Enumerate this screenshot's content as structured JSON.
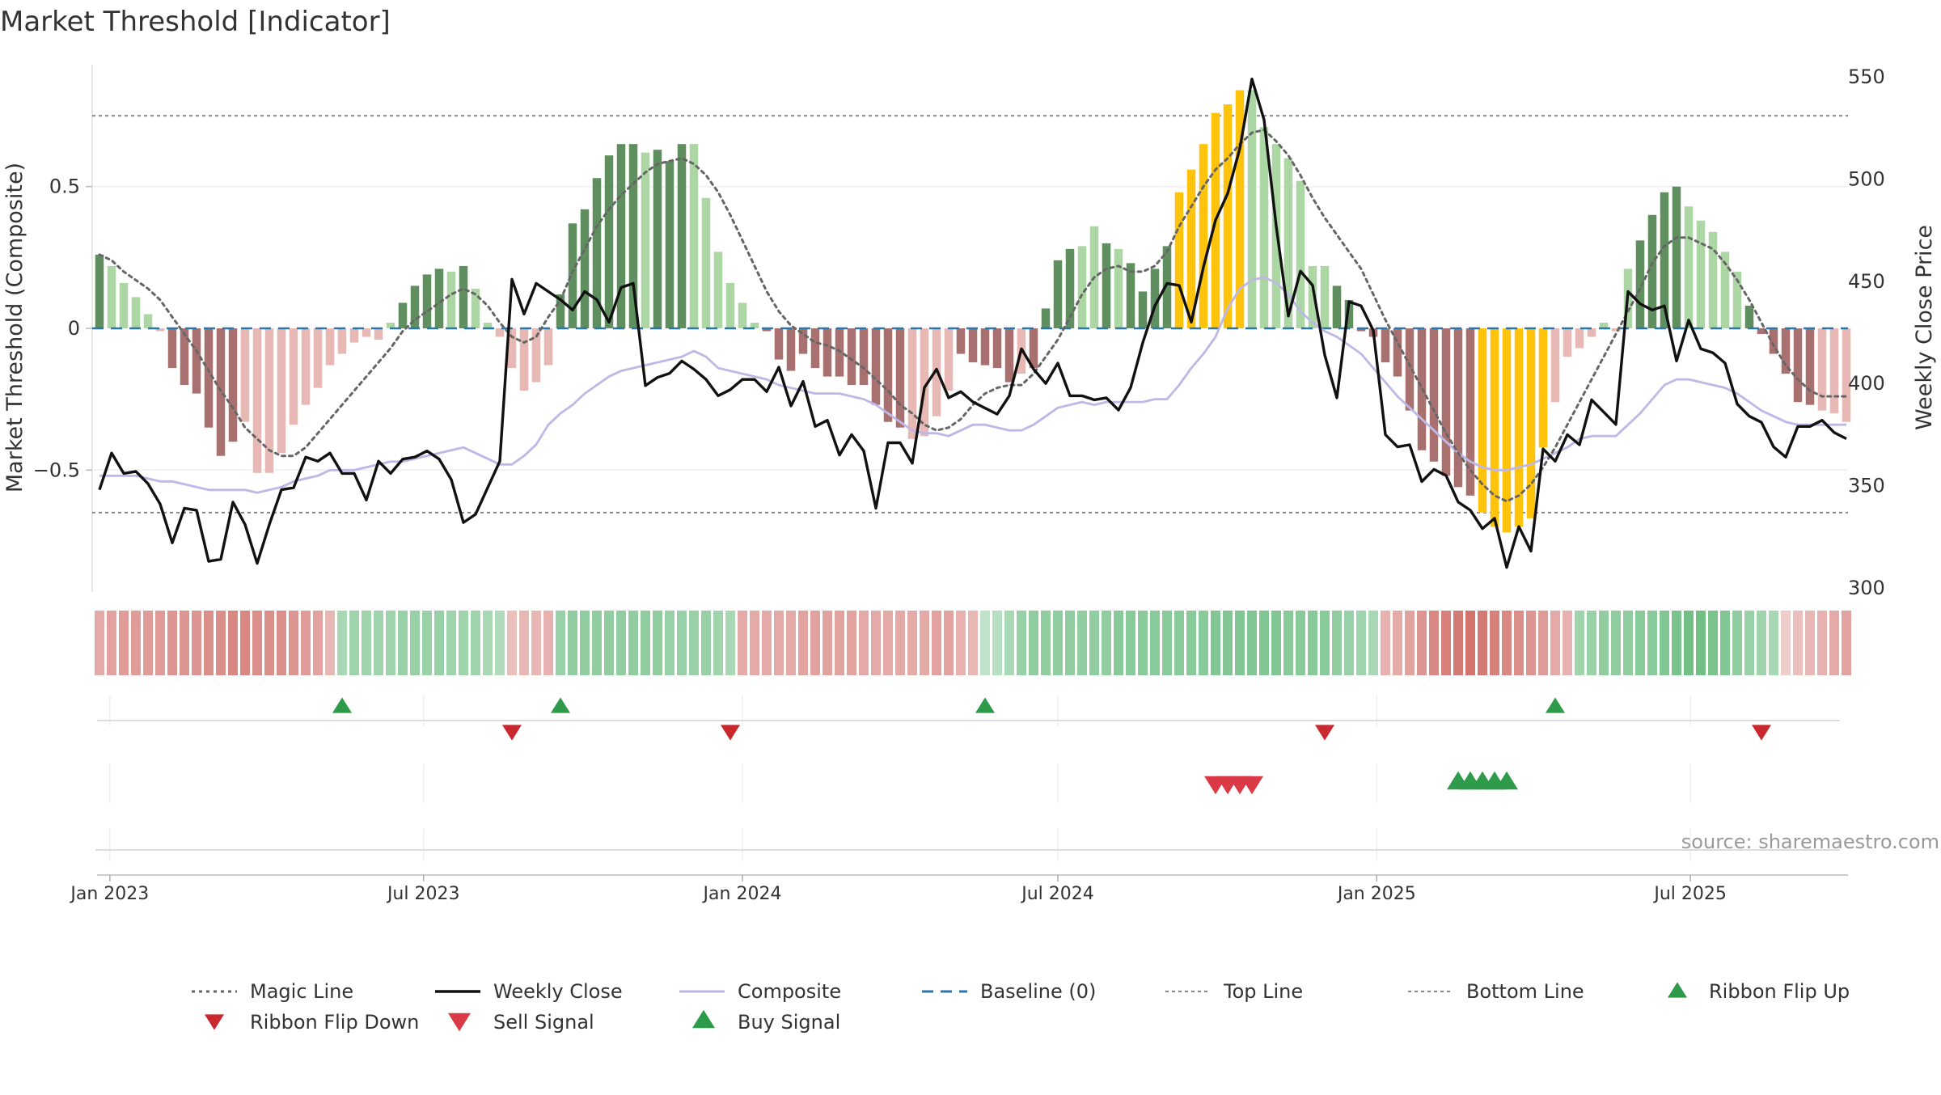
{
  "title": "Market Threshold [Indicator]",
  "source": "source: sharemaestro.com",
  "colors": {
    "strong_pos": "#5f8f5f",
    "weak_pos": "#acd6a4",
    "strong_neg": "#a8716f",
    "weak_neg": "#e8b9b4",
    "extreme": "#ffc30b",
    "close": "#111111",
    "composite": "#bdb8e6",
    "magic": "#666666",
    "baseline": "#2f76a8",
    "thresh": "#888888",
    "buy": "#2e9b4a",
    "sell": "#d93a45",
    "flip_up": "#2e9b4a",
    "flip_down": "#c8282e"
  },
  "legend": {
    "magic": "Magic Line",
    "close": "Weekly Close",
    "composite": "Composite",
    "baseline": "Baseline (0)",
    "top": "Top Line",
    "bottom": "Bottom Line",
    "flip_up": "Ribbon Flip Up",
    "flip_down": "Ribbon Flip Down",
    "sell": "Sell Signal",
    "buy": "Buy Signal"
  },
  "chart_data": {
    "type": "bar",
    "start_date": "2022-12-26",
    "weeks": 145,
    "xlabel": "",
    "ylabel": "Market Threshold (Composite)",
    "ylabel_right": "Weekly Close Price",
    "x_ticks": [
      "Jan 2023",
      "Jul 2023",
      "Jan 2024",
      "Jul 2024",
      "Jan 2025",
      "Jul 2025"
    ],
    "y_ticks": [
      "0.5",
      "0",
      "−0.5"
    ],
    "y_ticks_right": [
      "550",
      "500",
      "450",
      "400",
      "350",
      "300"
    ],
    "ylim": [
      -0.93,
      0.93
    ],
    "ylim_right": [
      298,
      556
    ],
    "top_line": 0.75,
    "bottom_line": -0.65,
    "bars": [
      0.26,
      0.22,
      0.16,
      0.11,
      0.05,
      -0.01,
      -0.14,
      -0.2,
      -0.23,
      -0.35,
      -0.45,
      -0.4,
      -0.33,
      -0.51,
      -0.51,
      -0.44,
      -0.34,
      -0.27,
      -0.21,
      -0.13,
      -0.09,
      -0.05,
      -0.03,
      -0.04,
      0.02,
      0.09,
      0.15,
      0.19,
      0.21,
      0.2,
      0.22,
      0.14,
      0.02,
      -0.03,
      -0.14,
      -0.22,
      -0.19,
      -0.13,
      0.12,
      0.37,
      0.42,
      0.53,
      0.61,
      0.65,
      0.65,
      0.62,
      0.63,
      0.59,
      0.65,
      0.65,
      0.46,
      0.27,
      0.16,
      0.09,
      0.02,
      -0.01,
      -0.11,
      -0.15,
      -0.09,
      -0.14,
      -0.17,
      -0.17,
      -0.2,
      -0.2,
      -0.27,
      -0.33,
      -0.35,
      -0.39,
      -0.38,
      -0.31,
      -0.22,
      -0.09,
      -0.12,
      -0.13,
      -0.14,
      -0.19,
      -0.16,
      -0.14,
      0.07,
      0.24,
      0.28,
      0.29,
      0.36,
      0.3,
      0.28,
      0.23,
      0.13,
      0.21,
      0.29,
      0.48,
      0.56,
      0.65,
      0.76,
      0.79,
      0.84,
      0.84,
      0.71,
      0.65,
      0.6,
      0.52,
      0.22,
      0.22,
      0.15,
      0.1,
      -0.01,
      -0.03,
      -0.12,
      -0.17,
      -0.29,
      -0.43,
      -0.47,
      -0.52,
      -0.56,
      -0.59,
      -0.65,
      -0.7,
      -0.72,
      -0.7,
      -0.67,
      -0.42,
      -0.26,
      -0.1,
      -0.07,
      -0.03,
      0.02,
      -0.01,
      0.21,
      0.31,
      0.4,
      0.48,
      0.5,
      0.43,
      0.38,
      0.34,
      0.27,
      0.2,
      0.08,
      -0.02,
      -0.09,
      -0.16,
      -0.26,
      -0.27,
      -0.29,
      -0.3,
      -0.33
    ],
    "bar_tone": "SWWWWWSSSSSSWWWWWWWWWWWWWSSSSWSWWWWWWWSSSSSSSWSSSWWWWWWSSSSSSSSSSSSWWWWSSSSSWSSSSWWSWSSSSXXXXXXWWWWWWWSSSSSSSSSSSSXXXXXXWWWWWWWSSSSWWWWWSSSSSS",
    "close": [
      348,
      366,
      356,
      357,
      351,
      341,
      322,
      339,
      338,
      313,
      314,
      342,
      331,
      312,
      331,
      348,
      349,
      364,
      362,
      366,
      356,
      356,
      343,
      362,
      356,
      363,
      364,
      367,
      363,
      353,
      332,
      336,
      349,
      362,
      451,
      434,
      449,
      445,
      441,
      436,
      445,
      441,
      430,
      447,
      449,
      399,
      403,
      405,
      411,
      407,
      402,
      394,
      397,
      402,
      402,
      396,
      408,
      389,
      401,
      379,
      382,
      365,
      375,
      367,
      339,
      371,
      371,
      361,
      398,
      407,
      393,
      396,
      391,
      388,
      385,
      394,
      417,
      407,
      400,
      410,
      394,
      394,
      392,
      393,
      387,
      398,
      420,
      438,
      449,
      448,
      430,
      457,
      480,
      493,
      515,
      549,
      529,
      477,
      433,
      455,
      448,
      414,
      393,
      440,
      438,
      426,
      375,
      369,
      370,
      352,
      358,
      355,
      342,
      338,
      329,
      334,
      310,
      330,
      318,
      368,
      362,
      375,
      370,
      392,
      386,
      380,
      445,
      439,
      436,
      438,
      411,
      431,
      417,
      415,
      410,
      390,
      384,
      381,
      369,
      364,
      379,
      379,
      382,
      376,
      373
    ],
    "composite": [
      -0.52,
      -0.52,
      -0.52,
      -0.52,
      -0.53,
      -0.54,
      -0.54,
      -0.55,
      -0.56,
      -0.57,
      -0.57,
      -0.57,
      -0.57,
      -0.58,
      -0.57,
      -0.56,
      -0.54,
      -0.53,
      -0.52,
      -0.5,
      -0.5,
      -0.5,
      -0.49,
      -0.48,
      -0.47,
      -0.47,
      -0.46,
      -0.45,
      -0.44,
      -0.43,
      -0.42,
      -0.44,
      -0.46,
      -0.48,
      -0.48,
      -0.45,
      -0.41,
      -0.34,
      -0.3,
      -0.27,
      -0.23,
      -0.2,
      -0.17,
      -0.15,
      -0.14,
      -0.13,
      -0.12,
      -0.11,
      -0.1,
      -0.08,
      -0.1,
      -0.14,
      -0.15,
      -0.16,
      -0.17,
      -0.18,
      -0.2,
      -0.21,
      -0.22,
      -0.23,
      -0.23,
      -0.23,
      -0.24,
      -0.25,
      -0.27,
      -0.3,
      -0.33,
      -0.36,
      -0.37,
      -0.37,
      -0.38,
      -0.36,
      -0.34,
      -0.34,
      -0.35,
      -0.36,
      -0.36,
      -0.34,
      -0.31,
      -0.28,
      -0.27,
      -0.26,
      -0.27,
      -0.26,
      -0.26,
      -0.26,
      -0.26,
      -0.25,
      -0.25,
      -0.2,
      -0.14,
      -0.09,
      -0.03,
      0.07,
      0.14,
      0.17,
      0.18,
      0.16,
      0.12,
      0.06,
      0.02,
      -0.01,
      -0.03,
      -0.06,
      -0.09,
      -0.14,
      -0.19,
      -0.24,
      -0.28,
      -0.32,
      -0.36,
      -0.4,
      -0.44,
      -0.47,
      -0.49,
      -0.5,
      -0.5,
      -0.49,
      -0.48,
      -0.46,
      -0.44,
      -0.42,
      -0.39,
      -0.38,
      -0.38,
      -0.38,
      -0.34,
      -0.3,
      -0.25,
      -0.2,
      -0.18,
      -0.18,
      -0.19,
      -0.2,
      -0.21,
      -0.23,
      -0.26,
      -0.29,
      -0.31,
      -0.33,
      -0.34,
      -0.34,
      -0.34,
      -0.34,
      -0.34
    ],
    "magic": [
      0.26,
      0.24,
      0.2,
      0.17,
      0.14,
      0.1,
      0.04,
      -0.02,
      -0.08,
      -0.15,
      -0.22,
      -0.28,
      -0.35,
      -0.39,
      -0.43,
      -0.45,
      -0.45,
      -0.42,
      -0.37,
      -0.32,
      -0.27,
      -0.22,
      -0.17,
      -0.12,
      -0.07,
      -0.01,
      0.03,
      0.06,
      0.09,
      0.12,
      0.14,
      0.12,
      0.08,
      0.02,
      -0.03,
      -0.05,
      -0.03,
      0.04,
      0.1,
      0.2,
      0.28,
      0.36,
      0.42,
      0.47,
      0.51,
      0.55,
      0.58,
      0.59,
      0.6,
      0.58,
      0.54,
      0.48,
      0.4,
      0.31,
      0.22,
      0.13,
      0.06,
      0.01,
      -0.02,
      -0.05,
      -0.06,
      -0.08,
      -0.11,
      -0.14,
      -0.18,
      -0.22,
      -0.27,
      -0.3,
      -0.34,
      -0.36,
      -0.35,
      -0.32,
      -0.27,
      -0.23,
      -0.21,
      -0.2,
      -0.2,
      -0.16,
      -0.1,
      -0.04,
      0.04,
      0.12,
      0.18,
      0.21,
      0.22,
      0.2,
      0.2,
      0.22,
      0.27,
      0.36,
      0.43,
      0.5,
      0.56,
      0.6,
      0.65,
      0.69,
      0.7,
      0.66,
      0.61,
      0.54,
      0.46,
      0.39,
      0.33,
      0.27,
      0.21,
      0.12,
      0.03,
      -0.05,
      -0.13,
      -0.21,
      -0.29,
      -0.37,
      -0.44,
      -0.5,
      -0.55,
      -0.59,
      -0.61,
      -0.59,
      -0.55,
      -0.49,
      -0.42,
      -0.34,
      -0.26,
      -0.18,
      -0.1,
      -0.02,
      0.06,
      0.14,
      0.23,
      0.29,
      0.32,
      0.32,
      0.3,
      0.28,
      0.23,
      0.17,
      0.1,
      0.02,
      -0.06,
      -0.13,
      -0.18,
      -0.22,
      -0.24,
      -0.24,
      -0.24
    ],
    "ribbon": [
      -0.45,
      -0.5,
      -0.55,
      -0.55,
      -0.55,
      -0.55,
      -0.6,
      -0.6,
      -0.6,
      -0.65,
      -0.65,
      -0.7,
      -0.7,
      -0.65,
      -0.65,
      -0.65,
      -0.6,
      -0.55,
      -0.5,
      -0.35,
      0.4,
      0.45,
      0.45,
      0.45,
      0.45,
      0.5,
      0.5,
      0.5,
      0.5,
      0.45,
      0.45,
      0.45,
      0.4,
      0.35,
      -0.3,
      -0.35,
      -0.35,
      -0.4,
      0.5,
      0.55,
      0.55,
      0.55,
      0.55,
      0.55,
      0.55,
      0.55,
      0.55,
      0.5,
      0.5,
      0.5,
      0.5,
      0.45,
      0.4,
      -0.45,
      -0.45,
      -0.45,
      -0.45,
      -0.45,
      -0.5,
      -0.5,
      -0.5,
      -0.5,
      -0.5,
      -0.45,
      -0.45,
      -0.45,
      -0.45,
      -0.45,
      -0.45,
      -0.5,
      -0.5,
      -0.4,
      -0.35,
      0.25,
      0.3,
      0.4,
      0.5,
      0.55,
      0.55,
      0.55,
      0.55,
      0.55,
      0.55,
      0.55,
      0.6,
      0.6,
      0.6,
      0.6,
      0.6,
      0.6,
      0.6,
      0.6,
      0.65,
      0.65,
      0.65,
      0.65,
      0.65,
      0.65,
      0.6,
      0.6,
      0.6,
      0.6,
      0.55,
      0.5,
      0.45,
      0.4,
      -0.4,
      -0.45,
      -0.5,
      -0.6,
      -0.7,
      -0.75,
      -0.8,
      -0.85,
      -0.8,
      -0.75,
      -0.7,
      -0.65,
      -0.6,
      -0.55,
      -0.45,
      -0.4,
      0.45,
      0.5,
      0.55,
      0.55,
      0.55,
      0.6,
      0.6,
      0.65,
      0.7,
      0.75,
      0.75,
      0.7,
      0.65,
      0.55,
      0.5,
      0.45,
      0.4,
      -0.2,
      -0.3,
      -0.35,
      -0.4,
      -0.45,
      -0.5
    ],
    "flip_up_weeks": [
      20,
      38,
      73,
      120
    ],
    "flip_down_weeks": [
      34,
      52,
      101,
      137
    ],
    "sell_signal_weeks": [
      92,
      93,
      94,
      95
    ],
    "buy_signal_weeks": [
      112,
      113,
      114,
      115,
      116
    ]
  }
}
